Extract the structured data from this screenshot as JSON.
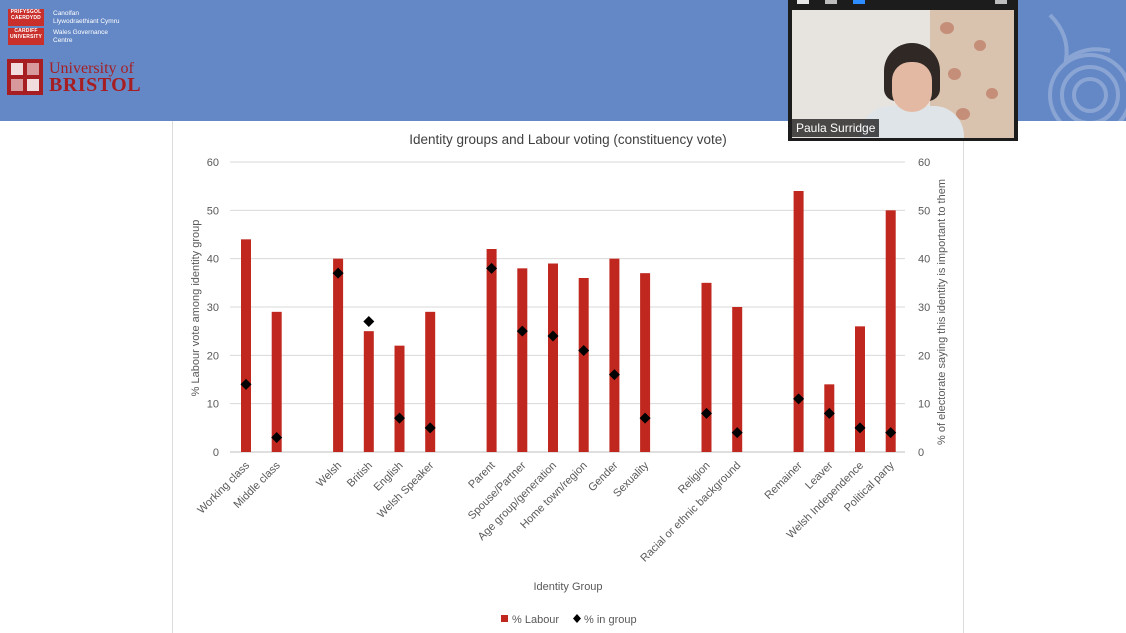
{
  "header": {
    "cardiff_crest": [
      "PRIFYSGOL",
      "CAERDYDD"
    ],
    "cardiff_crest2": [
      "CARDIFF",
      "UNIVERSITY"
    ],
    "wgc_welsh": [
      "Canolfan",
      "Llywodraethiant Cymru"
    ],
    "wgc_english": [
      "Wales Governance",
      "Centre"
    ],
    "bristol_line1": "University of",
    "bristol_line2": "BRISTOL"
  },
  "video": {
    "participant_name": "Paula Surridge"
  },
  "colors": {
    "banner": "#6488c6",
    "bar": "#c0281f",
    "marker": "#000000",
    "grid": "#d9d9d9",
    "axis_text": "#595959"
  },
  "chart_data": {
    "type": "bar",
    "title": "Identity groups and Labour voting (constituency vote)",
    "xlabel": "Identity Group",
    "ylabel": "% Labour vote among identity group",
    "y2label": "% of electorate saying this identity is important to them",
    "ylim": [
      0,
      60
    ],
    "y2lim": [
      0,
      60
    ],
    "yticks": [
      "0",
      "10",
      "20",
      "30",
      "40",
      "50",
      "60"
    ],
    "y2ticks": [
      "0",
      "10",
      "20",
      "30",
      "40",
      "50",
      "60"
    ],
    "categories": [
      "Working class",
      "Middle class",
      "",
      "Welsh",
      "British",
      "English",
      "Welsh Speaker",
      "",
      "Parent",
      "Spouse/Partner",
      "Age group/generation",
      "Home town/region",
      "Gender",
      "Sexuality",
      "",
      "Religion",
      "Racial or ethnic background",
      "",
      "Remainer",
      "Leaver",
      "Welsh Independence",
      "Political party"
    ],
    "series": [
      {
        "name": "% Labour",
        "type": "bar",
        "axis": "left",
        "values": [
          44,
          29,
          null,
          40,
          25,
          22,
          29,
          null,
          42,
          38,
          39,
          36,
          40,
          37,
          null,
          35,
          30,
          null,
          54,
          14,
          26,
          50
        ]
      },
      {
        "name": "% in group",
        "type": "marker",
        "axis": "right",
        "values": [
          14,
          3,
          null,
          37,
          27,
          7,
          5,
          null,
          38,
          25,
          24,
          21,
          16,
          7,
          null,
          8,
          4,
          null,
          11,
          8,
          5,
          4
        ]
      }
    ],
    "legend": [
      {
        "label": "% Labour"
      },
      {
        "label": "% in group"
      }
    ],
    "legend_position": "bottom"
  }
}
